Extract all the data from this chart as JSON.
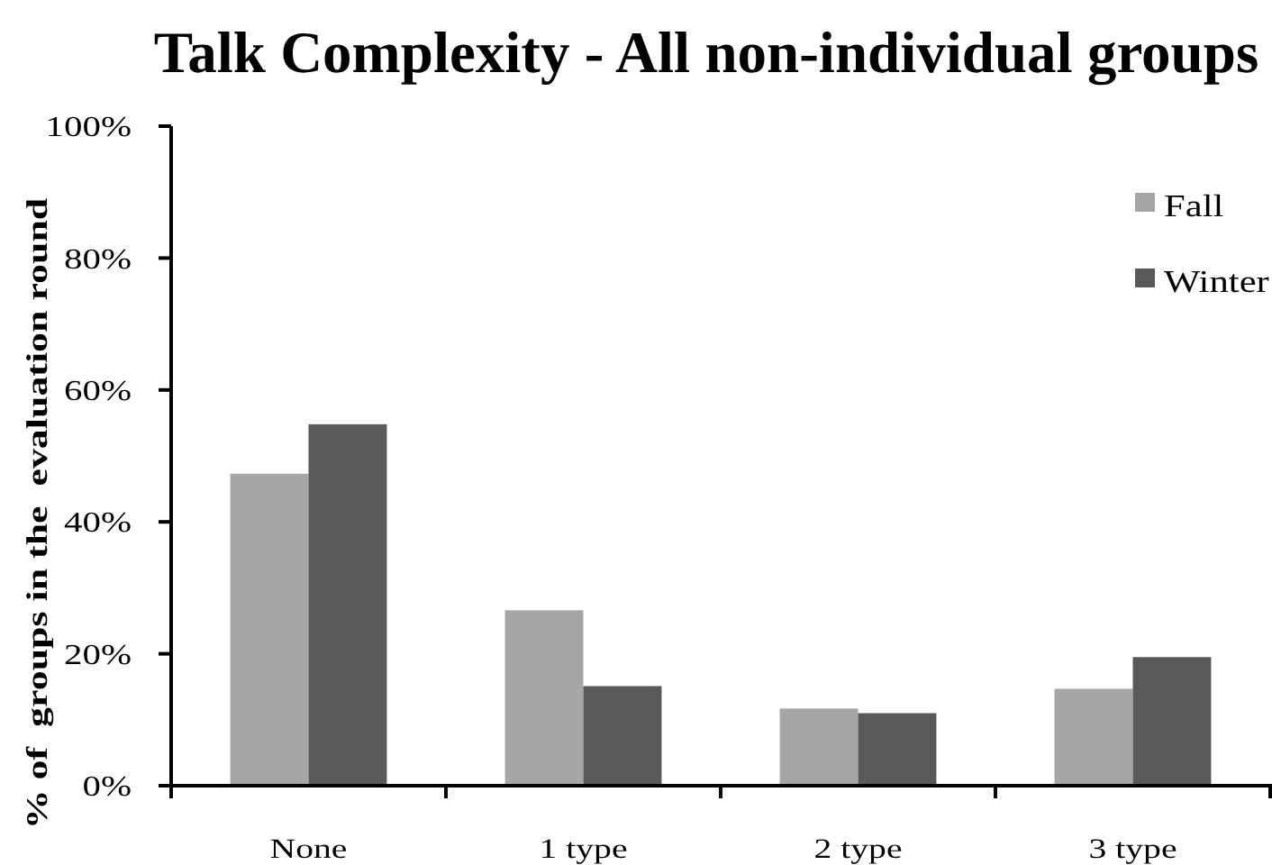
{
  "chart_data": {
    "type": "bar",
    "title": "Talk Complexity - All non-individual groups",
    "ylabel": "% of  groups in the  evaluation round",
    "categories": [
      "None",
      "1 type",
      "2 type",
      "3 type"
    ],
    "series": [
      {
        "name": "Fall",
        "color": "#a6a6a6",
        "values": [
          47.3,
          26.6,
          11.7,
          14.7
        ]
      },
      {
        "name": "Winter",
        "color": "#595959",
        "values": [
          54.8,
          15.1,
          11.0,
          19.5
        ]
      }
    ],
    "ylim": [
      0,
      100
    ],
    "yticks": [
      {
        "value": 0,
        "label": "0%"
      },
      {
        "value": 20,
        "label": "20%"
      },
      {
        "value": 40,
        "label": "40%"
      },
      {
        "value": 60,
        "label": "60%"
      },
      {
        "value": 80,
        "label": "80%"
      },
      {
        "value": 100,
        "label": "100%"
      }
    ],
    "grid": false,
    "legend": "top right"
  }
}
